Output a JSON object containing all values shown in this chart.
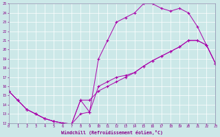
{
  "xlabel": "Windchill (Refroidissement éolien,°C)",
  "bg_color": "#cce8e8",
  "line_color": "#aa00aa",
  "grid_color": "#ffffff",
  "spine_color": "#8888aa",
  "xlim": [
    0,
    23
  ],
  "ylim": [
    12,
    25
  ],
  "xticks": [
    0,
    1,
    2,
    3,
    4,
    5,
    6,
    7,
    8,
    9,
    10,
    11,
    12,
    13,
    14,
    15,
    16,
    17,
    18,
    19,
    20,
    21,
    22,
    23
  ],
  "yticks": [
    12,
    13,
    14,
    15,
    16,
    17,
    18,
    19,
    20,
    21,
    22,
    23,
    24,
    25
  ],
  "curve1_x": [
    0,
    1,
    2,
    3,
    4,
    5,
    6,
    7,
    8,
    9,
    10,
    11,
    12,
    13,
    14,
    15,
    16,
    17,
    18,
    19,
    20,
    21,
    22,
    23
  ],
  "curve1_y": [
    15.5,
    14.5,
    13.5,
    13.0,
    12.5,
    12.2,
    12.0,
    11.9,
    14.5,
    13.2,
    19.0,
    21.0,
    23.0,
    23.5,
    24.0,
    25.0,
    25.0,
    24.5,
    24.2,
    24.5,
    24.0,
    22.5,
    20.5,
    18.5
  ],
  "curve2_x": [
    0,
    1,
    2,
    3,
    4,
    5,
    6,
    7,
    8,
    9,
    10,
    11,
    12,
    13,
    14,
    15,
    16,
    17,
    18,
    19,
    20,
    21,
    22,
    23
  ],
  "curve2_y": [
    15.5,
    14.5,
    13.5,
    13.0,
    12.5,
    12.2,
    12.0,
    11.9,
    14.5,
    14.5,
    15.5,
    16.0,
    16.5,
    17.0,
    17.5,
    18.2,
    18.8,
    19.3,
    19.8,
    20.3,
    21.0,
    21.0,
    20.5,
    18.5
  ],
  "curve3_x": [
    0,
    1,
    2,
    3,
    4,
    5,
    6,
    7,
    8,
    9,
    10,
    11,
    12,
    13,
    14,
    15,
    16,
    17,
    18,
    19,
    20,
    21,
    22,
    23
  ],
  "curve3_y": [
    15.5,
    14.5,
    13.5,
    13.0,
    12.5,
    12.2,
    12.0,
    11.9,
    13.0,
    13.2,
    16.0,
    16.5,
    17.0,
    17.2,
    17.5,
    18.2,
    18.8,
    19.3,
    19.8,
    20.3,
    21.0,
    21.0,
    20.5,
    18.5
  ],
  "figsize": [
    3.2,
    2.0
  ],
  "dpi": 100
}
